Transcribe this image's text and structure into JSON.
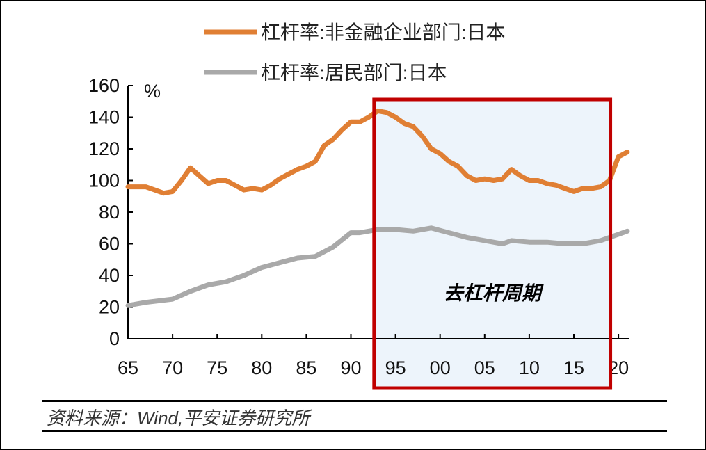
{
  "chart_data": {
    "type": "line",
    "unit_label": "%",
    "ylim": [
      0,
      160
    ],
    "yticks": [
      0,
      20,
      40,
      60,
      80,
      100,
      120,
      140,
      160
    ],
    "xlim": [
      1965,
      2021
    ],
    "xtick_years": [
      1965,
      1970,
      1975,
      1980,
      1985,
      1990,
      1995,
      2000,
      2005,
      2010,
      2015,
      2020
    ],
    "xtick_labels": [
      "65",
      "70",
      "75",
      "80",
      "85",
      "90",
      "95",
      "00",
      "05",
      "10",
      "15",
      "20"
    ],
    "grid": false,
    "legend_position": "top",
    "series": [
      {
        "name": "杠杆率:非金融企业部门:日本",
        "color": "#E07F34",
        "x": [
          1965,
          1967,
          1969,
          1970,
          1971,
          1972,
          1973,
          1974,
          1975,
          1976,
          1977,
          1978,
          1979,
          1980,
          1981,
          1982,
          1983,
          1984,
          1985,
          1986,
          1987,
          1988,
          1989,
          1990,
          1991,
          1992,
          1993,
          1994,
          1995,
          1996,
          1997,
          1998,
          1999,
          2000,
          2001,
          2002,
          2003,
          2004,
          2005,
          2006,
          2007,
          2008,
          2009,
          2010,
          2011,
          2012,
          2013,
          2014,
          2015,
          2016,
          2017,
          2018,
          2019,
          2020,
          2021
        ],
        "values": [
          96,
          96,
          92,
          93,
          100,
          108,
          103,
          98,
          100,
          100,
          97,
          94,
          95,
          94,
          97,
          101,
          104,
          107,
          109,
          112,
          122,
          126,
          132,
          137,
          137,
          140,
          144,
          143,
          140,
          136,
          134,
          128,
          120,
          117,
          112,
          109,
          103,
          100,
          101,
          100,
          101,
          107,
          103,
          100,
          100,
          98,
          97,
          95,
          93,
          95,
          95,
          96,
          100,
          115,
          118
        ]
      },
      {
        "name": "杠杆率:居民部门:日本",
        "color": "#A9A9A9",
        "x": [
          1965,
          1967,
          1970,
          1972,
          1974,
          1976,
          1978,
          1980,
          1982,
          1984,
          1986,
          1988,
          1990,
          1991,
          1992,
          1993,
          1995,
          1997,
          1999,
          2001,
          2003,
          2005,
          2007,
          2008,
          2010,
          2012,
          2014,
          2016,
          2018,
          2020,
          2021
        ],
        "values": [
          21,
          23,
          25,
          30,
          34,
          36,
          40,
          45,
          48,
          51,
          52,
          58,
          67,
          67,
          68,
          69,
          69,
          68,
          70,
          67,
          64,
          62,
          60,
          62,
          61,
          61,
          60,
          60,
          62,
          66,
          68
        ]
      }
    ],
    "highlight": {
      "label": "去杠杆周期",
      "x_range": [
        1992.6,
        2019.1
      ],
      "border_color": "#C00000",
      "fill_color": "#EDF4FB"
    }
  },
  "source": "资料来源：Wind,平安证券研究所"
}
